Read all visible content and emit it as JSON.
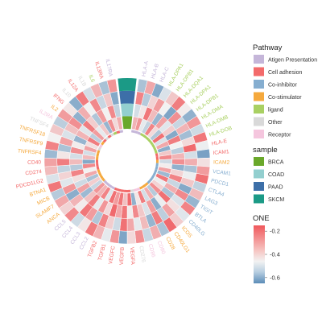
{
  "chart_data": {
    "type": "heatmap",
    "layout": "circular",
    "genes": [
      "HLA-A",
      "HLA-B",
      "HLA-C",
      "HLA-DPA1",
      "HLA-DPB1",
      "HLA-DQA1",
      "HLA-DPA1",
      "HLA-DPB1",
      "HLA-DMA",
      "HLA-DMB",
      "HLA-DOB",
      "HLA-E",
      "ICAM1",
      "ICAM2",
      "VCAM1",
      "PDCD1",
      "CTLA4",
      "LAG3",
      "TIGIT",
      "BTLA",
      "CD40LG",
      "ICOS",
      "CD40LG1",
      "CD28",
      "CD80",
      "CD86",
      "CD276",
      "VEGFA",
      "VEGFB",
      "VEGFC",
      "TGFB1",
      "TGFB2",
      "CCL2",
      "CCL3",
      "CCL4",
      "CCL5",
      "ANCA",
      "SLAMF7",
      "MICB",
      "BTNA1",
      "PDCD1LG2",
      "CD274",
      "CD40",
      "TNFRSF4",
      "TNFRSF9",
      "TNFRSF18",
      "TNFSF4",
      "IL2RA",
      "IL2",
      "IFNG",
      "IL10",
      "IL12A",
      "IL1B",
      "IL6",
      "IL13RA",
      "IL17RA"
    ],
    "gene_pathway": [
      "Atigen Presentation",
      "Atigen Presentation",
      "Atigen Presentation",
      "Ligand",
      "Ligand",
      "Ligand",
      "Ligand",
      "Ligand",
      "Ligand",
      "Ligand",
      "Ligand",
      "Cell adhesion",
      "Cell adhesion",
      "Co-stimulator",
      "Co-inhibitor",
      "Co-inhibitor",
      "Co-inhibitor",
      "Co-inhibitor",
      "Co-inhibitor",
      "Co-inhibitor",
      "Co-inhibitor",
      "Co-stimulator",
      "Co-stimulator",
      "Co-stimulator",
      "Receptor",
      "Receptor",
      "Other",
      "Cell adhesion",
      "Cell adhesion",
      "Cell adhesion",
      "Cell adhesion",
      "Cell adhesion",
      "Atigen Presentation",
      "Atigen Presentation",
      "Atigen Presentation",
      "Atigen Presentation",
      "Co-stimulator",
      "Co-stimulator",
      "Co-stimulator",
      "Co-stimulator",
      "Cell adhesion",
      "Cell adhesion",
      "Cell adhesion",
      "Co-stimulator",
      "Co-stimulator",
      "Co-stimulator",
      "Other",
      "Receptor",
      "Co-stimulator",
      "Cell adhesion",
      "Other",
      "Cell adhesion",
      "Other",
      "Ligand",
      "Cell adhesion",
      "Atigen Presentation"
    ],
    "samples": [
      "BRCA",
      "COAD",
      "PAAD",
      "SKCM"
    ],
    "values": [
      [
        -0.3,
        -0.45,
        -0.22,
        -0.52
      ],
      [
        -0.25,
        -0.38,
        -0.5,
        -0.28
      ],
      [
        -0.42,
        -0.2,
        -0.35,
        -0.58
      ],
      [
        -0.48,
        -0.31,
        -0.26,
        -0.44
      ],
      [
        -0.22,
        -0.55,
        -0.4,
        -0.33
      ],
      [
        -0.36,
        -0.27,
        -0.59,
        -0.21
      ],
      [
        -0.51,
        -0.43,
        -0.24,
        -0.39
      ],
      [
        -0.19,
        -0.34,
        -0.47,
        -0.56
      ],
      [
        -0.44,
        -0.58,
        -0.3,
        -0.25
      ],
      [
        -0.28,
        -0.21,
        -0.53,
        -0.46
      ],
      [
        -0.57,
        -0.4,
        -0.36,
        -0.2
      ],
      [
        -0.33,
        -0.49,
        -0.18,
        -0.41
      ],
      [
        -0.23,
        -0.3,
        -0.45,
        -0.6
      ],
      [
        -0.46,
        -0.24,
        -0.29,
        -0.37
      ],
      [
        -0.39,
        -0.56,
        -0.52,
        -0.26
      ],
      [
        -0.27,
        -0.35,
        -0.41,
        -0.19
      ],
      [
        -0.54,
        -0.22,
        -0.33,
        -0.48
      ],
      [
        -0.2,
        -0.47,
        -0.58,
        -0.31
      ],
      [
        -0.41,
        -0.29,
        -0.23,
        -0.55
      ],
      [
        -0.35,
        -0.52,
        -0.44,
        -0.22
      ],
      [
        -0.24,
        -0.19,
        -0.37,
        -0.43
      ],
      [
        -0.5,
        -0.41,
        -0.27,
        -0.34
      ],
      [
        -0.29,
        -0.57,
        -0.49,
        -0.18
      ],
      [
        -0.45,
        -0.26,
        -0.21,
        -0.52
      ],
      [
        -0.21,
        -0.44,
        -0.55,
        -0.29
      ],
      [
        -0.38,
        -0.33,
        -0.31,
        -0.47
      ],
      [
        -0.56,
        -0.23,
        -0.42,
        -0.24
      ],
      [
        -0.18,
        -0.39,
        -0.28,
        -0.36
      ],
      [
        -0.32,
        -0.2,
        -0.19,
        -0.59
      ],
      [
        -0.2,
        -0.28,
        -0.46,
        -0.25
      ],
      [
        -0.26,
        -0.18,
        -0.34,
        -0.42
      ],
      [
        -0.19,
        -0.36,
        -0.22,
        -0.3
      ],
      [
        -0.43,
        -0.25,
        -0.51,
        -0.21
      ],
      [
        -0.22,
        -0.42,
        -0.26,
        -0.38
      ],
      [
        -0.3,
        -0.21,
        -0.2,
        -0.46
      ],
      [
        -0.25,
        -0.32,
        -0.39,
        -0.23
      ],
      [
        -0.47,
        -0.54,
        -0.3,
        -0.35
      ],
      [
        -0.34,
        -0.27,
        -0.57,
        -0.28
      ],
      [
        -0.52,
        -0.46,
        -0.25,
        -0.5
      ],
      [
        -0.28,
        -0.37,
        -0.43,
        -0.2
      ],
      [
        -0.4,
        -0.22,
        -0.35,
        -0.44
      ],
      [
        -0.23,
        -0.5,
        -0.48,
        -0.31
      ],
      [
        -0.58,
        -0.31,
        -0.21,
        -0.27
      ],
      [
        -0.31,
        -0.45,
        -0.38,
        -0.54
      ],
      [
        -0.45,
        -0.24,
        -0.52,
        -0.22
      ],
      [
        -0.27,
        -0.39,
        -0.27,
        -0.4
      ],
      [
        -0.37,
        -0.55,
        -0.44,
        -0.33
      ],
      [
        -0.21,
        -0.3,
        -0.32,
        -0.49
      ],
      [
        -0.49,
        -0.43,
        -0.24,
        -0.26
      ],
      [
        -0.26,
        -0.21,
        -0.56,
        -0.38
      ],
      [
        -0.42,
        -0.34,
        -0.29,
        -0.57
      ],
      [
        -0.33,
        -0.51,
        -0.4,
        -0.21
      ],
      [
        -0.55,
        -0.26,
        -0.23,
        -0.45
      ],
      [
        -0.24,
        -0.4,
        -0.47,
        -0.3
      ],
      [
        -0.36,
        -0.23,
        -0.33,
        -0.52
      ],
      [
        -0.29,
        -0.48,
        -0.58,
        -0.25
      ]
    ],
    "color_scale": {
      "min": -0.65,
      "max": -0.15,
      "low": "#5b8db8",
      "mid": "#f2f2f2",
      "high": "#f0585c",
      "ticks": [
        -0.2,
        -0.4,
        -0.6
      ]
    }
  },
  "legend": {
    "pathway": {
      "title": "Pathway",
      "items": [
        {
          "label": "Atigen Presentation",
          "color": "#c5b6d9"
        },
        {
          "label": "Cell adhesion",
          "color": "#f36b6b"
        },
        {
          "label": "Co-inhibitor",
          "color": "#86aed0"
        },
        {
          "label": "Co-stimulator",
          "color": "#f5a93d"
        },
        {
          "label": "ligand",
          "color": "#a9d062"
        },
        {
          "label": "Other",
          "color": "#d9d9d9"
        },
        {
          "label": "Receptor",
          "color": "#f5c6de"
        }
      ]
    },
    "sample": {
      "title": "sample",
      "items": [
        {
          "label": "BRCA",
          "color": "#6aa82a"
        },
        {
          "label": "COAD",
          "color": "#93cfcf"
        },
        {
          "label": "PAAD",
          "color": "#3d6fa8"
        },
        {
          "label": "SKCM",
          "color": "#1b9a86"
        }
      ]
    },
    "colorbar": {
      "title": "ONE",
      "tick_labels": [
        "-0.2",
        "-0.4",
        "-0.6"
      ]
    }
  }
}
